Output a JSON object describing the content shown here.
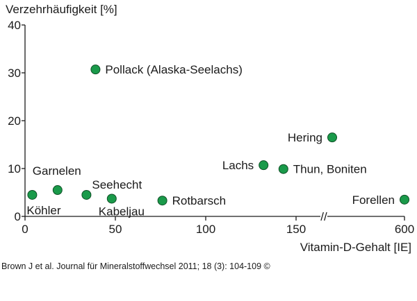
{
  "chart_data": {
    "type": "scatter",
    "title": "",
    "ylabel": "Verzehrhäufigkeit [%]",
    "xlabel": "Vitamin-D-Gehalt [IE]",
    "ylim": [
      0,
      40
    ],
    "yticks": [
      0,
      10,
      20,
      30,
      40
    ],
    "xticks": [
      {
        "value": 0,
        "label": "0"
      },
      {
        "value": 50,
        "label": "50"
      },
      {
        "value": 100,
        "label": "100"
      },
      {
        "value": 150,
        "label": "150"
      },
      {
        "value": 600,
        "label": "600"
      }
    ],
    "x_axis_break": {
      "from": 165,
      "to": 520,
      "label": "//"
    },
    "marker_color": "#1a9a4a",
    "points": [
      {
        "label": "Köhler",
        "x": 4,
        "y": 4.5
      },
      {
        "label": "Garnelen",
        "x": 18,
        "y": 5.5
      },
      {
        "label": "Seehecht",
        "x": 34,
        "y": 4.5
      },
      {
        "label": "Kabeljau",
        "x": 48,
        "y": 3.7
      },
      {
        "label": "Pollack (Alaska-Seelachs)",
        "x": 39,
        "y": 30.7
      },
      {
        "label": "Rotbarsch",
        "x": 76,
        "y": 3.3
      },
      {
        "label": "Lachs",
        "x": 132,
        "y": 10.7
      },
      {
        "label": "Thun, Boniten",
        "x": 143,
        "y": 9.9
      },
      {
        "label": "Hering",
        "x": 560,
        "y": 16.5
      },
      {
        "label": "Forellen",
        "x": 600,
        "y": 3.5
      }
    ]
  },
  "caption": "Brown J et al. Journal für Mineralstoffwechsel 2011; 18 (3): 104-109 ©"
}
